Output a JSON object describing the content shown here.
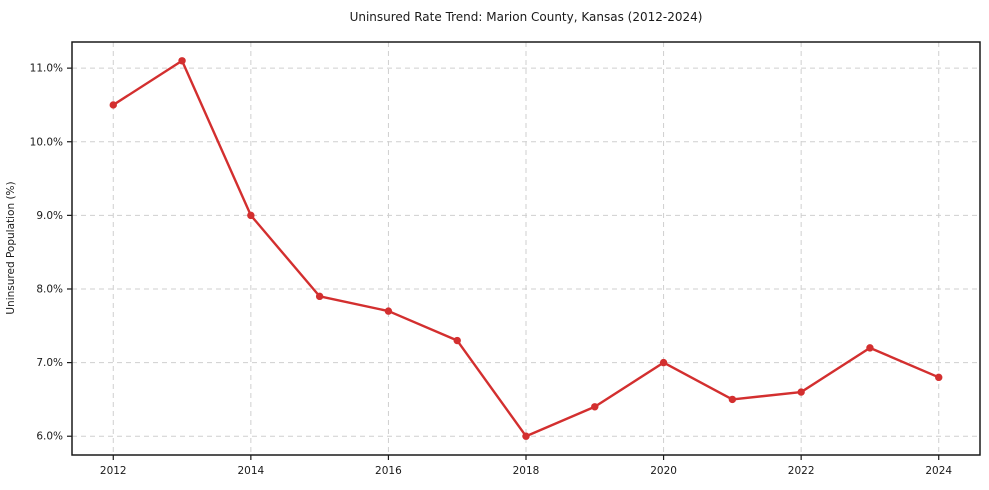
{
  "page": {
    "background": "#ffffff"
  },
  "chart_data": {
    "type": "line",
    "title": "Uninsured Rate Trend: Marion County, Kansas (2012-2024)",
    "xlabel": "",
    "ylabel": "Uninsured Population (%)",
    "x": [
      2012,
      2013,
      2014,
      2015,
      2016,
      2017,
      2018,
      2019,
      2020,
      2021,
      2022,
      2023,
      2024
    ],
    "values": [
      10.5,
      11.1,
      9.0,
      7.9,
      7.7,
      7.3,
      6.0,
      6.4,
      7.0,
      6.5,
      6.6,
      7.2,
      6.8
    ],
    "x_ticks": [
      2012,
      2014,
      2016,
      2018,
      2020,
      2022,
      2024
    ],
    "x_tick_labels": [
      "2012",
      "2014",
      "2016",
      "2018",
      "2020",
      "2022",
      "2024"
    ],
    "y_ticks": [
      6,
      7,
      8,
      9,
      10,
      11
    ],
    "y_tick_labels": [
      "6.0%",
      "7.0%",
      "8.0%",
      "9.0%",
      "10.0%",
      "11.0%"
    ],
    "xlim": [
      2011.4,
      2024.6
    ],
    "ylim": [
      5.745,
      11.355
    ],
    "grid": true,
    "grid_style": "dashed",
    "legend_position": "none",
    "line_color": "#d32f2f",
    "marker_color": "#d32f2f",
    "marker": "circle",
    "grid_color": "#cfcfcf",
    "axis_color": "#1a1a1a",
    "text_color": "#1a1a1a"
  }
}
